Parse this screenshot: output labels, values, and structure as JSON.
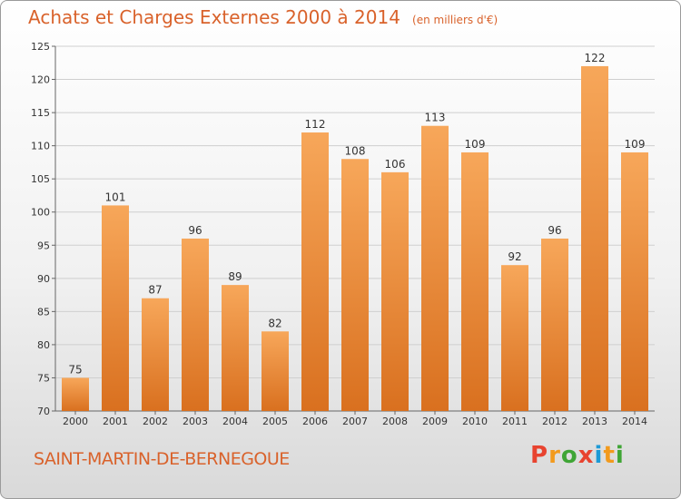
{
  "chart_data": {
    "type": "bar",
    "title": "Achats et Charges Externes 2000 à 2014",
    "subtitle": "(en milliers d'€)",
    "categories": [
      "2000",
      "2001",
      "2002",
      "2003",
      "2004",
      "2005",
      "2006",
      "2007",
      "2008",
      "2009",
      "2010",
      "2011",
      "2012",
      "2013",
      "2014"
    ],
    "values": [
      75,
      101,
      87,
      96,
      89,
      82,
      112,
      108,
      106,
      113,
      109,
      92,
      96,
      122,
      109
    ],
    "ylim": [
      70,
      125
    ],
    "yticks": [
      70,
      75,
      80,
      85,
      90,
      95,
      100,
      105,
      110,
      115,
      120,
      125
    ],
    "grid": true,
    "colors": {
      "bar_light": "#f7a75a",
      "bar_dark": "#d9701f",
      "title": "#d9622b"
    }
  },
  "footer": {
    "commune": "SAINT-MARTIN-DE-BERNEGOUE",
    "brand": "Proxiti",
    "brand_colors": [
      "#e8432f",
      "#f29a1d",
      "#3fa535",
      "#e8432f",
      "#1d9ad6",
      "#f29a1d",
      "#3fa535"
    ]
  }
}
